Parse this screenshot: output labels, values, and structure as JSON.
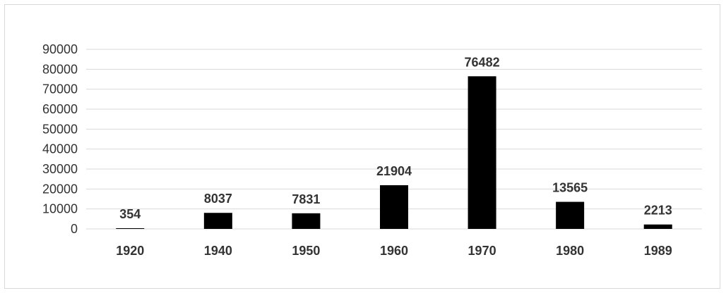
{
  "chart_data": {
    "type": "bar",
    "categories": [
      "1920",
      "1940",
      "1950",
      "1960",
      "1970",
      "1980",
      "1989"
    ],
    "values": [
      354,
      8037,
      7831,
      21904,
      76482,
      13565,
      2213
    ],
    "data_labels": [
      "354",
      "8037",
      "7831",
      "21904",
      "76482",
      "13565",
      "2213"
    ],
    "title": "",
    "xlabel": "",
    "ylabel": "",
    "ylim": [
      0,
      90000
    ],
    "yticks": [
      0,
      10000,
      20000,
      30000,
      40000,
      50000,
      60000,
      70000,
      80000,
      90000
    ],
    "grid": true,
    "legend": "none",
    "bar_color": "#000000",
    "grid_color": "#d9d9d9",
    "text_color": "#333333"
  }
}
